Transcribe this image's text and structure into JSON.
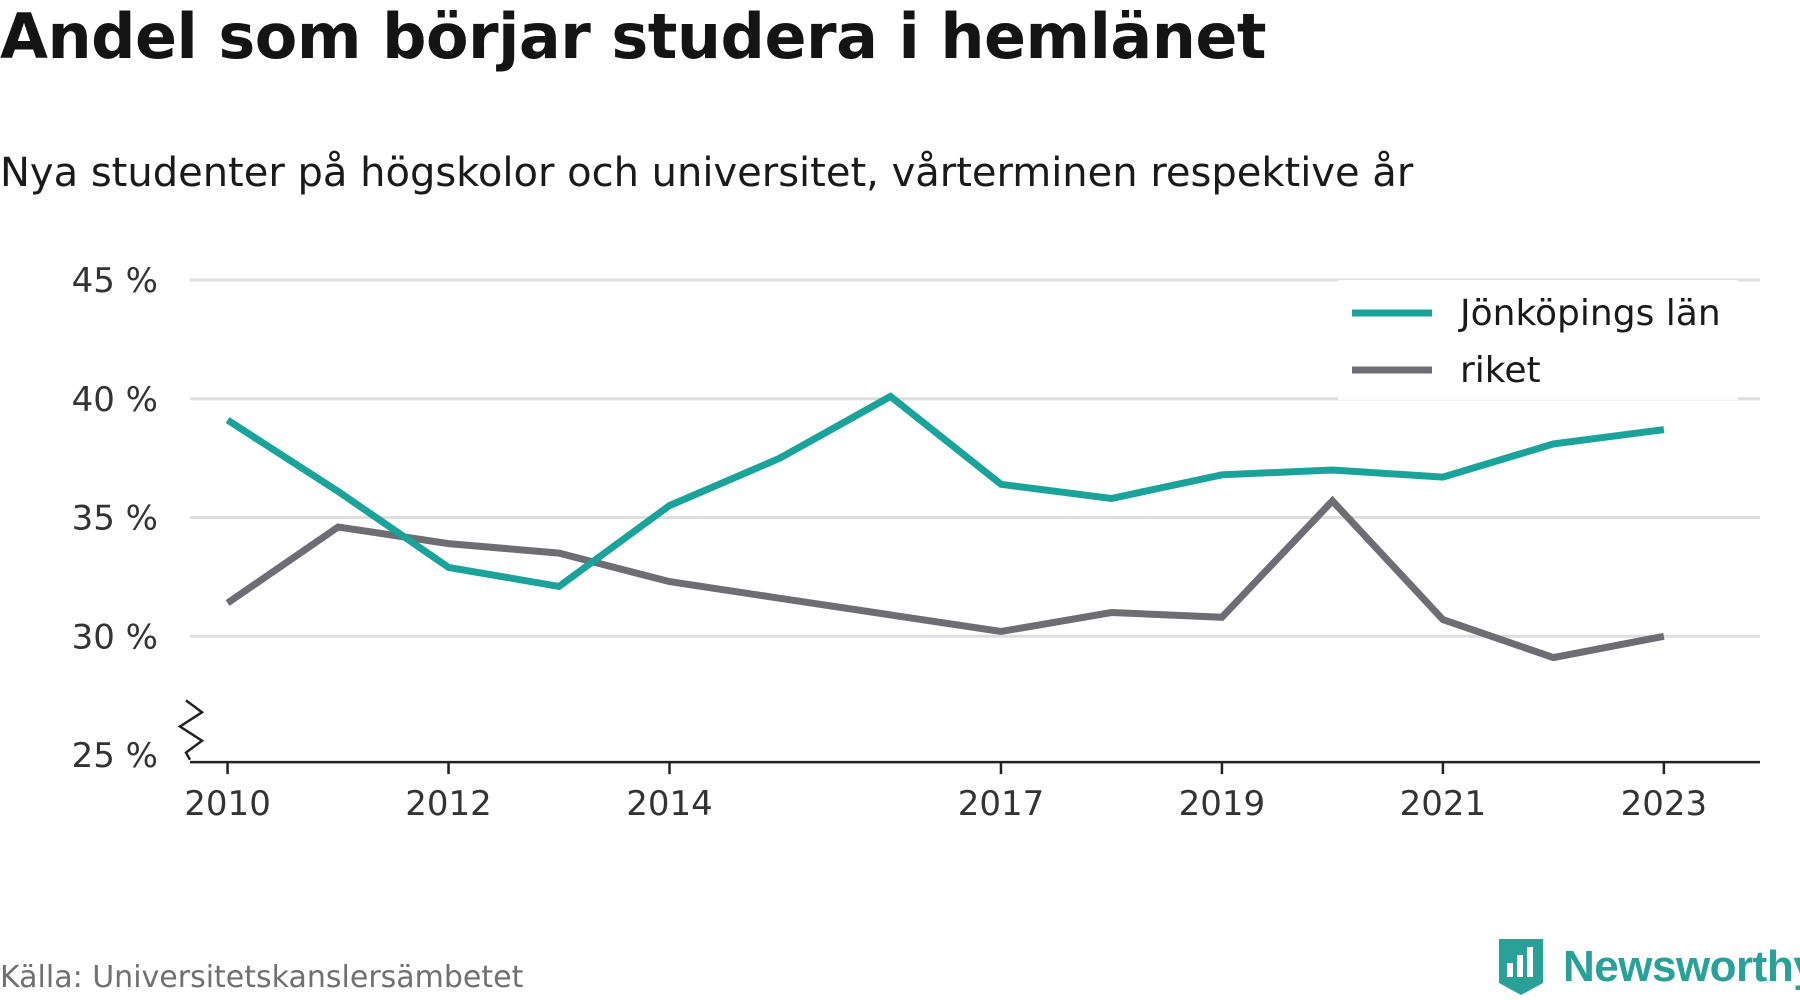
{
  "title": "Andel som börjar studera i hemlänet",
  "subtitle": "Nya studenter på högskolor och universitet, vårterminen respektive år",
  "source": "Källa: Universitetskanslersämbetet",
  "brand": {
    "name": "Newsworthy",
    "icon": "newsworthy-logo-icon",
    "color": "#2aa198"
  },
  "chart_data": {
    "type": "line",
    "title": "Andel som börjar studera i hemlänet",
    "subtitle": "Nya studenter på högskolor och universitet, vårterminen respektive år",
    "xlabel": "",
    "ylabel": "",
    "ylim": [
      25,
      45
    ],
    "y_axis_break": true,
    "grid": true,
    "legend_position": "top-right",
    "yticks": [
      25,
      30,
      35,
      40,
      45
    ],
    "ytick_labels": [
      "25 %",
      "30 %",
      "35 %",
      "40 %",
      "45 %"
    ],
    "xticks": [
      2010,
      2012,
      2014,
      2017,
      2019,
      2021,
      2023
    ],
    "xtick_labels": [
      "2010",
      "2012",
      "2014",
      "2017",
      "2019",
      "2021",
      "2023"
    ],
    "x": [
      2010,
      2011,
      2012,
      2013,
      2014,
      2015,
      2016,
      2017,
      2018,
      2019,
      2020,
      2021,
      2022,
      2023
    ],
    "series": [
      {
        "name": "Jönköpings län",
        "color": "#1aa39a",
        "values": [
          39.1,
          36.1,
          32.9,
          32.1,
          35.5,
          37.5,
          40.1,
          36.4,
          35.8,
          36.8,
          37.0,
          36.7,
          38.1,
          38.7
        ]
      },
      {
        "name": "riket",
        "color": "#6e6d74",
        "values": [
          31.4,
          34.6,
          33.9,
          33.5,
          32.3,
          31.6,
          30.9,
          30.2,
          31.0,
          30.8,
          35.7,
          30.7,
          29.1,
          30.0
        ]
      }
    ]
  }
}
